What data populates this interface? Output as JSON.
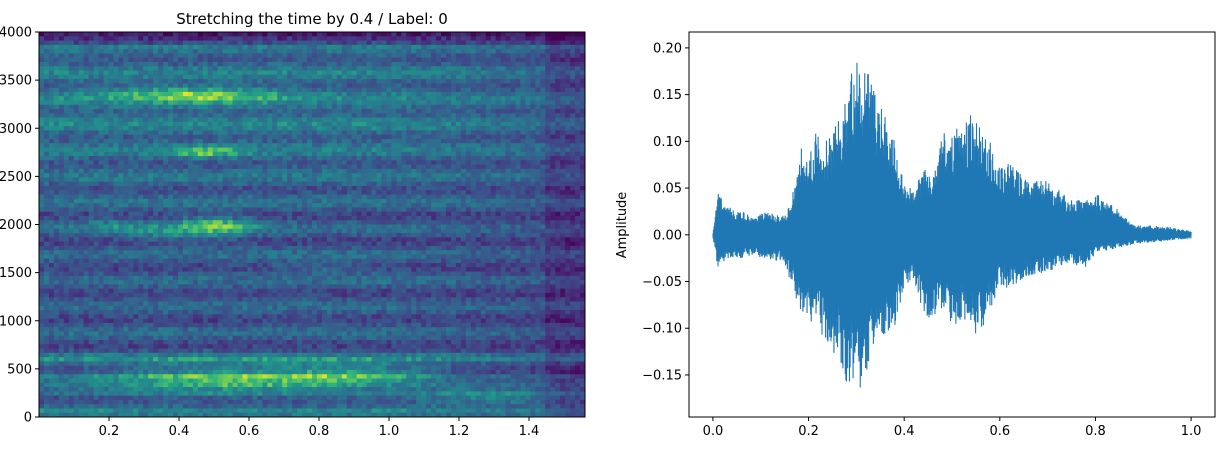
{
  "chart_data": [
    {
      "type": "heatmap",
      "title": "Stretching the time by 0.4 / Label: 0",
      "xlabel": "",
      "ylabel": "",
      "xlim": [
        0.0,
        1.56
      ],
      "ylim": [
        0,
        4000
      ],
      "xticks": [
        0.2,
        0.4,
        0.6,
        0.8,
        1.0,
        1.2,
        1.4
      ],
      "xtick_labels": [
        "0.2",
        "0.4",
        "0.6",
        "0.8",
        "1.0",
        "1.2",
        "1.4"
      ],
      "yticks": [
        0,
        500,
        1000,
        1500,
        2000,
        2500,
        3000,
        3500,
        4000
      ],
      "ytick_labels": [
        "0",
        "500",
        "1000",
        "1500",
        "2000",
        "2500",
        "3000",
        "3500",
        "4000"
      ],
      "colormap": "viridis",
      "grid": false
    },
    {
      "type": "line",
      "title": "",
      "xlabel": "",
      "ylabel": "Amplitude",
      "xlim": [
        -0.05,
        1.05
      ],
      "ylim": [
        -0.195,
        0.217
      ],
      "xticks": [
        0.0,
        0.2,
        0.4,
        0.6,
        0.8,
        1.0
      ],
      "xtick_labels": [
        "0.0",
        "0.2",
        "0.4",
        "0.6",
        "0.8",
        "1.0"
      ],
      "yticks": [
        -0.15,
        -0.1,
        -0.05,
        0.0,
        0.05,
        0.1,
        0.15,
        0.2
      ],
      "ytick_labels": [
        "−0.15",
        "−0.10",
        "−0.05",
        "0.00",
        "0.05",
        "0.10",
        "0.15",
        "0.20"
      ],
      "color": "#1f77b4",
      "grid": false,
      "envelope": {
        "x": [
          0.0,
          0.005,
          0.01,
          0.03,
          0.06,
          0.09,
          0.1,
          0.15,
          0.16,
          0.17,
          0.18,
          0.19,
          0.2,
          0.22,
          0.24,
          0.26,
          0.28,
          0.3,
          0.32,
          0.34,
          0.36,
          0.38,
          0.4,
          0.42,
          0.44,
          0.46,
          0.48,
          0.5,
          0.52,
          0.54,
          0.56,
          0.58,
          0.6,
          0.62,
          0.64,
          0.66,
          0.7,
          0.74,
          0.78,
          0.8,
          0.84,
          0.88,
          0.92,
          0.96,
          1.0
        ],
        "upper": [
          0.002,
          0.02,
          0.045,
          0.03,
          0.025,
          0.02,
          0.025,
          0.02,
          0.035,
          0.05,
          0.09,
          0.1,
          0.08,
          0.12,
          0.1,
          0.12,
          0.15,
          0.195,
          0.18,
          0.15,
          0.13,
          0.1,
          0.06,
          0.045,
          0.08,
          0.06,
          0.11,
          0.11,
          0.12,
          0.13,
          0.12,
          0.1,
          0.07,
          0.08,
          0.07,
          0.06,
          0.06,
          0.04,
          0.04,
          0.045,
          0.03,
          0.01,
          0.01,
          0.008,
          0.004
        ],
        "lower": [
          -0.002,
          -0.02,
          -0.035,
          -0.025,
          -0.025,
          -0.022,
          -0.025,
          -0.03,
          -0.05,
          -0.06,
          -0.08,
          -0.085,
          -0.09,
          -0.1,
          -0.12,
          -0.13,
          -0.16,
          -0.175,
          -0.15,
          -0.13,
          -0.12,
          -0.1,
          -0.06,
          -0.05,
          -0.09,
          -0.09,
          -0.08,
          -0.1,
          -0.09,
          -0.11,
          -0.11,
          -0.08,
          -0.055,
          -0.06,
          -0.05,
          -0.045,
          -0.04,
          -0.03,
          -0.035,
          -0.02,
          -0.015,
          -0.01,
          -0.008,
          -0.006,
          -0.004
        ]
      }
    }
  ]
}
